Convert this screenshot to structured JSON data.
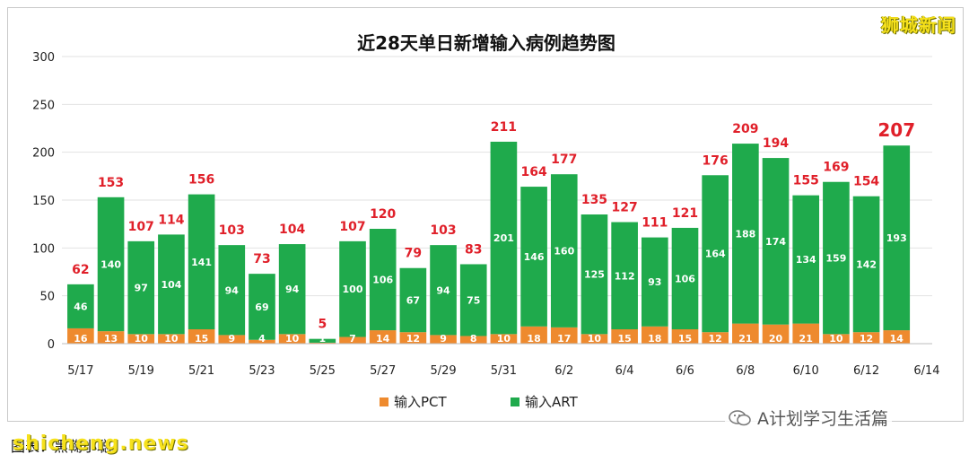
{
  "chart_data": {
    "type": "bar",
    "stacked": true,
    "title": "近28天单日新增输入病例趋势图",
    "ylim": [
      0,
      300
    ],
    "yticks": [
      0,
      50,
      100,
      150,
      200,
      250,
      300
    ],
    "x_tick_labels": [
      "5/17",
      "5/19",
      "5/21",
      "5/23",
      "5/25",
      "5/27",
      "5/29",
      "5/31",
      "6/2",
      "6/4",
      "6/6",
      "6/8",
      "6/10",
      "6/12",
      "6/14"
    ],
    "categories": [
      "5/17",
      "5/18",
      "5/19",
      "5/20",
      "5/21",
      "5/22",
      "5/23",
      "5/24",
      "5/25",
      "5/26",
      "5/27",
      "5/28",
      "5/29",
      "5/30",
      "5/31",
      "6/1",
      "6/2",
      "6/3",
      "6/4",
      "6/5",
      "6/6",
      "6/7",
      "6/8",
      "6/9",
      "6/10",
      "6/11",
      "6/12",
      "6/13"
    ],
    "series": [
      {
        "name": "输入PCT",
        "color": "#ee8a2e",
        "values": [
          16,
          13,
          10,
          10,
          15,
          9,
          4,
          10,
          1,
          7,
          14,
          12,
          9,
          8,
          10,
          18,
          17,
          10,
          15,
          18,
          15,
          12,
          21,
          20,
          21,
          10,
          12,
          14
        ],
        "labels": [
          "16",
          "13",
          "10",
          "10",
          "15",
          "9",
          "4",
          "10",
          "1",
          "7",
          "14",
          "12",
          "9",
          "8",
          "10",
          "18",
          "17",
          "10",
          "15",
          "18",
          "15",
          "12",
          "21",
          "20",
          "21",
          "10",
          "12",
          "14"
        ]
      },
      {
        "name": "输入ART",
        "color": "#1faa4c",
        "values": [
          46,
          140,
          97,
          104,
          141,
          94,
          69,
          94,
          4,
          100,
          106,
          67,
          94,
          75,
          201,
          146,
          160,
          125,
          112,
          93,
          106,
          164,
          188,
          174,
          134,
          159,
          142,
          193
        ],
        "labels": [
          "46",
          "140",
          "97",
          "104",
          "141",
          "94",
          "69",
          "94",
          "4",
          "100",
          "106",
          "67",
          "94",
          "75",
          "201",
          "146",
          "160",
          "125",
          "112",
          "93",
          "106",
          "164",
          "188",
          "174",
          "134",
          "159",
          "142",
          "193"
        ]
      }
    ],
    "totals": [
      62,
      153,
      107,
      114,
      156,
      103,
      73,
      104,
      5,
      107,
      120,
      79,
      103,
      83,
      211,
      164,
      177,
      135,
      127,
      111,
      121,
      176,
      209,
      194,
      155,
      169,
      154,
      207
    ],
    "total_labels": [
      "62",
      "153",
      "107",
      "114",
      "156",
      "103",
      "73",
      "104",
      "5",
      "107",
      "120",
      "79",
      "103",
      "83",
      "211",
      "164",
      "177",
      "135",
      "127",
      "111",
      "121",
      "176",
      "209",
      "194",
      "155",
      "169",
      "154",
      "207"
    ],
    "total_label_color": "#e0202a",
    "legend_position": "bottom",
    "grid": true
  },
  "watermark_top": "狮城新闻",
  "wechat_source": "A计划学习生活篇",
  "caption_credit": "图表：黑鞠小聪",
  "watermark_bottom": "shicheng.news"
}
